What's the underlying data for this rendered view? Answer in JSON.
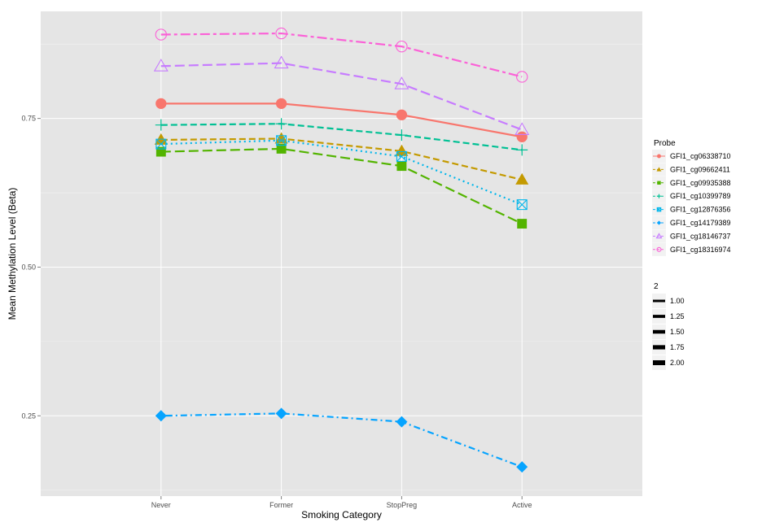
{
  "chart_data": {
    "type": "line",
    "xlabel": "Smoking Category",
    "ylabel": "Mean Methylation Level (Beta)",
    "categories": [
      "Never",
      "Former",
      "StopPreg",
      "Active"
    ],
    "ylim": [
      0.115,
      0.93
    ],
    "yticks": [
      0.25,
      0.5,
      0.75
    ],
    "ytick_labels": [
      "0.25",
      "0.50",
      "0.75"
    ],
    "series": [
      {
        "name": "GFI1_cg06338710",
        "color": "#F8766D",
        "shape": "circle",
        "dash": "solid",
        "values": [
          0.775,
          0.775,
          0.756,
          0.719
        ]
      },
      {
        "name": "GFI1_cg09662411",
        "color": "#C49A00",
        "shape": "triangle",
        "dash": "dashed",
        "values": [
          0.714,
          0.716,
          0.695,
          0.647
        ]
      },
      {
        "name": "GFI1_cg09935388",
        "color": "#53B400",
        "shape": "square",
        "dash": "longdash",
        "values": [
          0.694,
          0.699,
          0.67,
          0.573
        ]
      },
      {
        "name": "GFI1_cg10399789",
        "color": "#00C094",
        "shape": "plus",
        "dash": "dashed",
        "values": [
          0.739,
          0.741,
          0.722,
          0.697
        ]
      },
      {
        "name": "GFI1_cg12876356",
        "color": "#00B6EB",
        "shape": "squarecross",
        "dash": "dotted",
        "values": [
          0.707,
          0.713,
          0.686,
          0.605
        ]
      },
      {
        "name": "GFI1_cg14179389",
        "color": "#06A4FF",
        "shape": "diamond",
        "dash": "dotdash",
        "values": [
          0.25,
          0.254,
          0.24,
          0.164
        ]
      },
      {
        "name": "GFI1_cg18146737",
        "color": "#C77CFF",
        "shape": "opentriangle",
        "dash": "longdash",
        "values": [
          0.838,
          0.843,
          0.808,
          0.731
        ]
      },
      {
        "name": "GFI1_cg18316974",
        "color": "#FB61D7",
        "shape": "opencircle",
        "dash": "twodash",
        "values": [
          0.891,
          0.893,
          0.871,
          0.82
        ]
      }
    ],
    "legend": {
      "title": "Probe",
      "position": "right",
      "size_title": "2",
      "size_values": [
        1.0,
        1.25,
        1.5,
        1.75,
        2.0
      ],
      "size_labels": [
        "1.00",
        "1.25",
        "1.50",
        "1.75",
        "2.00"
      ]
    },
    "grid": true
  }
}
